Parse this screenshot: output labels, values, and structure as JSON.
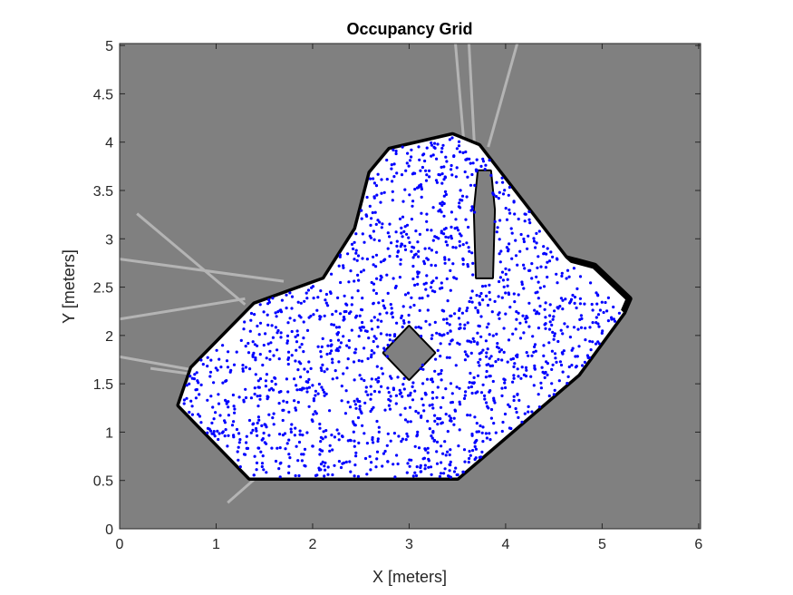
{
  "chart_data": {
    "type": "scatter",
    "title": "Occupancy Grid",
    "xlabel": "X [meters]",
    "ylabel": "Y [meters]",
    "xlim": [
      0,
      6.02
    ],
    "ylim": [
      0,
      5.02
    ],
    "xticks": [
      0,
      1,
      2,
      3,
      4,
      5,
      6
    ],
    "xtick_labels": [
      "0",
      "1",
      "2",
      "3",
      "4",
      "5",
      "6"
    ],
    "yticks": [
      0,
      0.5,
      1,
      1.5,
      2,
      2.5,
      3,
      3.5,
      4,
      4.5,
      5
    ],
    "ytick_labels": [
      "0",
      "0.5",
      "1",
      "1.5",
      "2",
      "2.5",
      "3",
      "3.5",
      "4",
      "4.5",
      "5"
    ],
    "grid": false,
    "colors": {
      "unknown": "#808080",
      "free": "#ffffff",
      "occupied": "#000000",
      "ray": "#b4b4b4",
      "particles": "#0000ff"
    },
    "free_region": [
      [
        0.62,
        1.28
      ],
      [
        1.35,
        0.53
      ],
      [
        3.5,
        0.53
      ],
      [
        4.75,
        1.6
      ],
      [
        5.22,
        2.24
      ],
      [
        4.9,
        2.55
      ],
      [
        4.62,
        2.8
      ],
      [
        3.72,
        3.96
      ],
      [
        3.45,
        4.07
      ],
      [
        2.8,
        3.92
      ],
      [
        2.6,
        3.68
      ],
      [
        2.45,
        3.1
      ],
      [
        2.12,
        2.58
      ],
      [
        1.4,
        2.32
      ],
      [
        0.75,
        1.66
      ]
    ],
    "wall_outline": [
      [
        0.62,
        1.28
      ],
      [
        1.35,
        0.53
      ],
      [
        3.5,
        0.53
      ],
      [
        4.75,
        1.6
      ],
      [
        5.22,
        2.24
      ],
      [
        5.28,
        2.38
      ],
      [
        4.92,
        2.72
      ],
      [
        4.62,
        2.8
      ],
      [
        3.72,
        3.96
      ],
      [
        3.45,
        4.07
      ],
      [
        2.8,
        3.92
      ],
      [
        2.6,
        3.68
      ],
      [
        2.45,
        3.1
      ],
      [
        2.12,
        2.58
      ],
      [
        1.4,
        2.32
      ],
      [
        0.75,
        1.66
      ]
    ],
    "obstacles": [
      {
        "name": "center-block",
        "polygon": [
          [
            3.0,
            1.55
          ],
          [
            3.26,
            1.82
          ],
          [
            3.0,
            2.09
          ],
          [
            2.74,
            1.82
          ]
        ]
      },
      {
        "name": "pillar",
        "polygon": [
          [
            3.7,
            2.6
          ],
          [
            3.86,
            2.6
          ],
          [
            3.88,
            3.3
          ],
          [
            3.84,
            3.7
          ],
          [
            3.72,
            3.7
          ],
          [
            3.68,
            3.3
          ]
        ]
      }
    ],
    "rays": [
      {
        "from": [
          1.3,
          2.32
        ],
        "to": [
          0.18,
          3.26
        ]
      },
      {
        "from": [
          1.7,
          2.56
        ],
        "to": [
          0.0,
          2.79
        ]
      },
      {
        "from": [
          1.3,
          2.38
        ],
        "to": [
          0.0,
          2.17
        ]
      },
      {
        "from": [
          0.78,
          1.64
        ],
        "to": [
          0.0,
          1.78
        ]
      },
      {
        "from": [
          0.75,
          1.6
        ],
        "to": [
          0.32,
          1.66
        ]
      },
      {
        "from": [
          1.45,
          0.56
        ],
        "to": [
          1.12,
          0.27
        ]
      },
      {
        "from": [
          3.68,
          3.9
        ],
        "to": [
          3.62,
          5.02
        ]
      },
      {
        "from": [
          3.58,
          3.85
        ],
        "to": [
          3.48,
          5.02
        ]
      },
      {
        "from": [
          3.82,
          3.95
        ],
        "to": [
          4.12,
          5.02
        ]
      }
    ],
    "particle_count": 1700
  }
}
